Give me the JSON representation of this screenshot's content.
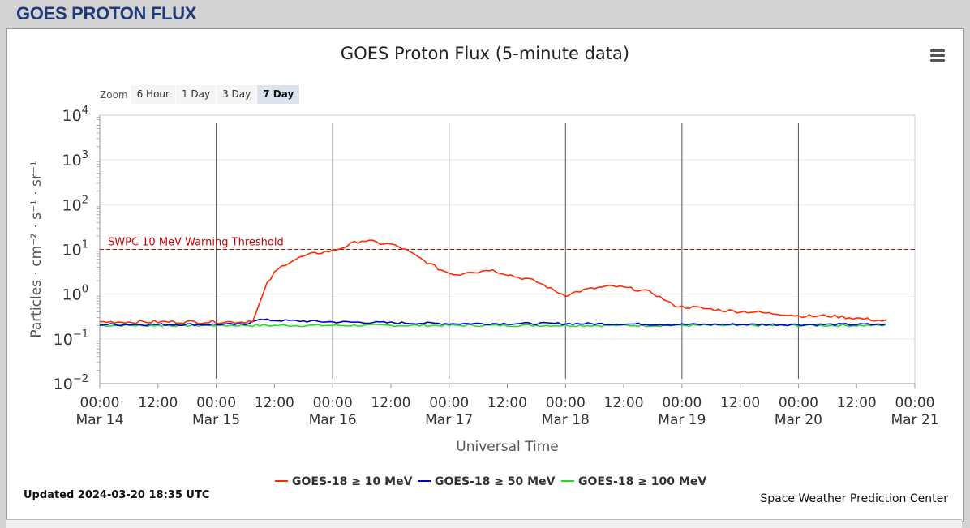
{
  "header": {
    "title": "GOES PROTON FLUX"
  },
  "chart": {
    "title": "GOES Proton Flux (5-minute data)",
    "menu_icon": "hamburger-menu-icon",
    "zoom_label": "Zoom",
    "zoom_buttons": [
      {
        "label": "6 Hour",
        "active": false
      },
      {
        "label": "1 Day",
        "active": false
      },
      {
        "label": "3 Day",
        "active": false
      },
      {
        "label": "7 Day",
        "active": true
      }
    ],
    "updated": "Updated 2024-03-20 18:35 UTC",
    "credit": "Space Weather Prediction Center"
  },
  "chart_data": {
    "type": "line",
    "title": "GOES Proton Flux (5-minute data)",
    "xlabel": "Universal Time",
    "ylabel": "Particles · cm⁻² · s⁻¹ · sr⁻¹",
    "yscale": "log",
    "ylim": [
      0.01,
      10000
    ],
    "xlim": [
      "2024-03-14 00:00",
      "2024-03-21 00:00"
    ],
    "y_ticks": [
      {
        "base": "10",
        "exp": "4"
      },
      {
        "base": "10",
        "exp": "3"
      },
      {
        "base": "10",
        "exp": "2"
      },
      {
        "base": "10",
        "exp": "1"
      },
      {
        "base": "10",
        "exp": "0"
      },
      {
        "base": "10",
        "exp": "−1"
      },
      {
        "base": "10",
        "exp": "−2"
      }
    ],
    "x_ticks": [
      {
        "time": "00:00",
        "date": "Mar 14"
      },
      {
        "time": "12:00",
        "date": ""
      },
      {
        "time": "00:00",
        "date": "Mar 15"
      },
      {
        "time": "12:00",
        "date": ""
      },
      {
        "time": "00:00",
        "date": "Mar 16"
      },
      {
        "time": "12:00",
        "date": ""
      },
      {
        "time": "00:00",
        "date": "Mar 17"
      },
      {
        "time": "12:00",
        "date": ""
      },
      {
        "time": "00:00",
        "date": "Mar 18"
      },
      {
        "time": "12:00",
        "date": ""
      },
      {
        "time": "00:00",
        "date": "Mar 19"
      },
      {
        "time": "12:00",
        "date": ""
      },
      {
        "time": "00:00",
        "date": "Mar 20"
      },
      {
        "time": "12:00",
        "date": ""
      },
      {
        "time": "00:00",
        "date": "Mar 21"
      }
    ],
    "threshold": {
      "label": "SWPC 10 MeV Warning Threshold",
      "value": 10,
      "color": "#cc0000"
    },
    "legend_position": "bottom-center",
    "series": [
      {
        "name": "GOES-18 ≥ 10 MeV",
        "color": "#ff2a00",
        "points": [
          [
            "2024-03-14 00:00",
            0.24
          ],
          [
            "2024-03-14 06:00",
            0.24
          ],
          [
            "2024-03-14 12:00",
            0.24
          ],
          [
            "2024-03-14 18:00",
            0.24
          ],
          [
            "2024-03-15 00:00",
            0.24
          ],
          [
            "2024-03-15 06:00",
            0.24
          ],
          [
            "2024-03-15 07:30",
            0.26
          ],
          [
            "2024-03-15 08:30",
            0.45
          ],
          [
            "2024-03-15 09:30",
            0.9
          ],
          [
            "2024-03-15 10:30",
            1.7
          ],
          [
            "2024-03-15 12:00",
            3.0
          ],
          [
            "2024-03-15 14:00",
            4.6
          ],
          [
            "2024-03-15 16:00",
            5.8
          ],
          [
            "2024-03-15 18:00",
            7.0
          ],
          [
            "2024-03-15 20:00",
            8.0
          ],
          [
            "2024-03-15 22:00",
            8.7
          ],
          [
            "2024-03-16 00:00",
            9.3
          ],
          [
            "2024-03-16 02:00",
            11.0
          ],
          [
            "2024-03-16 04:00",
            13.5
          ],
          [
            "2024-03-16 06:00",
            15.8
          ],
          [
            "2024-03-16 08:00",
            15.0
          ],
          [
            "2024-03-16 10:00",
            13.5
          ],
          [
            "2024-03-16 12:00",
            13.0
          ],
          [
            "2024-03-16 14:00",
            11.0
          ],
          [
            "2024-03-16 16:00",
            8.5
          ],
          [
            "2024-03-16 18:00",
            6.3
          ],
          [
            "2024-03-16 20:00",
            4.8
          ],
          [
            "2024-03-16 22:00",
            3.6
          ],
          [
            "2024-03-17 00:00",
            3.0
          ],
          [
            "2024-03-17 02:00",
            2.7
          ],
          [
            "2024-03-17 04:00",
            3.3
          ],
          [
            "2024-03-17 06:00",
            3.1
          ],
          [
            "2024-03-17 08:00",
            3.6
          ],
          [
            "2024-03-17 10:00",
            3.2
          ],
          [
            "2024-03-17 12:00",
            2.8
          ],
          [
            "2024-03-17 14:00",
            2.4
          ],
          [
            "2024-03-17 16:00",
            2.2
          ],
          [
            "2024-03-17 18:00",
            1.9
          ],
          [
            "2024-03-17 20:00",
            1.5
          ],
          [
            "2024-03-17 22:00",
            1.15
          ],
          [
            "2024-03-18 00:00",
            0.95
          ],
          [
            "2024-03-18 02:00",
            1.1
          ],
          [
            "2024-03-18 04:00",
            1.25
          ],
          [
            "2024-03-18 06:00",
            1.35
          ],
          [
            "2024-03-18 08:00",
            1.45
          ],
          [
            "2024-03-18 10:00",
            1.5
          ],
          [
            "2024-03-18 12:00",
            1.4
          ],
          [
            "2024-03-18 14:00",
            1.3
          ],
          [
            "2024-03-18 16:00",
            1.2
          ],
          [
            "2024-03-18 18:00",
            1.05
          ],
          [
            "2024-03-18 20:00",
            0.8
          ],
          [
            "2024-03-18 22:00",
            0.58
          ],
          [
            "2024-03-19 00:00",
            0.52
          ],
          [
            "2024-03-19 03:00",
            0.5
          ],
          [
            "2024-03-19 06:00",
            0.46
          ],
          [
            "2024-03-19 09:00",
            0.43
          ],
          [
            "2024-03-19 12:00",
            0.41
          ],
          [
            "2024-03-19 15:00",
            0.4
          ],
          [
            "2024-03-19 18:00",
            0.37
          ],
          [
            "2024-03-19 21:00",
            0.36
          ],
          [
            "2024-03-20 00:00",
            0.33
          ],
          [
            "2024-03-20 03:00",
            0.32
          ],
          [
            "2024-03-20 06:00",
            0.33
          ],
          [
            "2024-03-20 09:00",
            0.31
          ],
          [
            "2024-03-20 12:00",
            0.29
          ],
          [
            "2024-03-20 15:00",
            0.27
          ],
          [
            "2024-03-20 18:00",
            0.25
          ],
          [
            "2024-03-20 18:35",
            0.24
          ]
        ]
      },
      {
        "name": "GOES-18 ≥ 50 MeV",
        "color": "#0000cc",
        "points": [
          [
            "2024-03-14 00:00",
            0.21
          ],
          [
            "2024-03-15 06:00",
            0.21
          ],
          [
            "2024-03-15 08:00",
            0.27
          ],
          [
            "2024-03-15 12:00",
            0.26
          ],
          [
            "2024-03-15 18:00",
            0.25
          ],
          [
            "2024-03-16 00:00",
            0.24
          ],
          [
            "2024-03-16 12:00",
            0.23
          ],
          [
            "2024-03-17 00:00",
            0.22
          ],
          [
            "2024-03-18 00:00",
            0.22
          ],
          [
            "2024-03-19 00:00",
            0.21
          ],
          [
            "2024-03-20 00:00",
            0.21
          ],
          [
            "2024-03-20 18:35",
            0.21
          ]
        ]
      },
      {
        "name": "GOES-18 ≥ 100 MeV",
        "color": "#22dd22",
        "points": [
          [
            "2024-03-14 00:00",
            0.2
          ],
          [
            "2024-03-15 00:00",
            0.2
          ],
          [
            "2024-03-16 00:00",
            0.2
          ],
          [
            "2024-03-17 00:00",
            0.2
          ],
          [
            "2024-03-18 00:00",
            0.2
          ],
          [
            "2024-03-19 00:00",
            0.2
          ],
          [
            "2024-03-20 00:00",
            0.2
          ],
          [
            "2024-03-20 18:35",
            0.2
          ]
        ]
      }
    ]
  }
}
